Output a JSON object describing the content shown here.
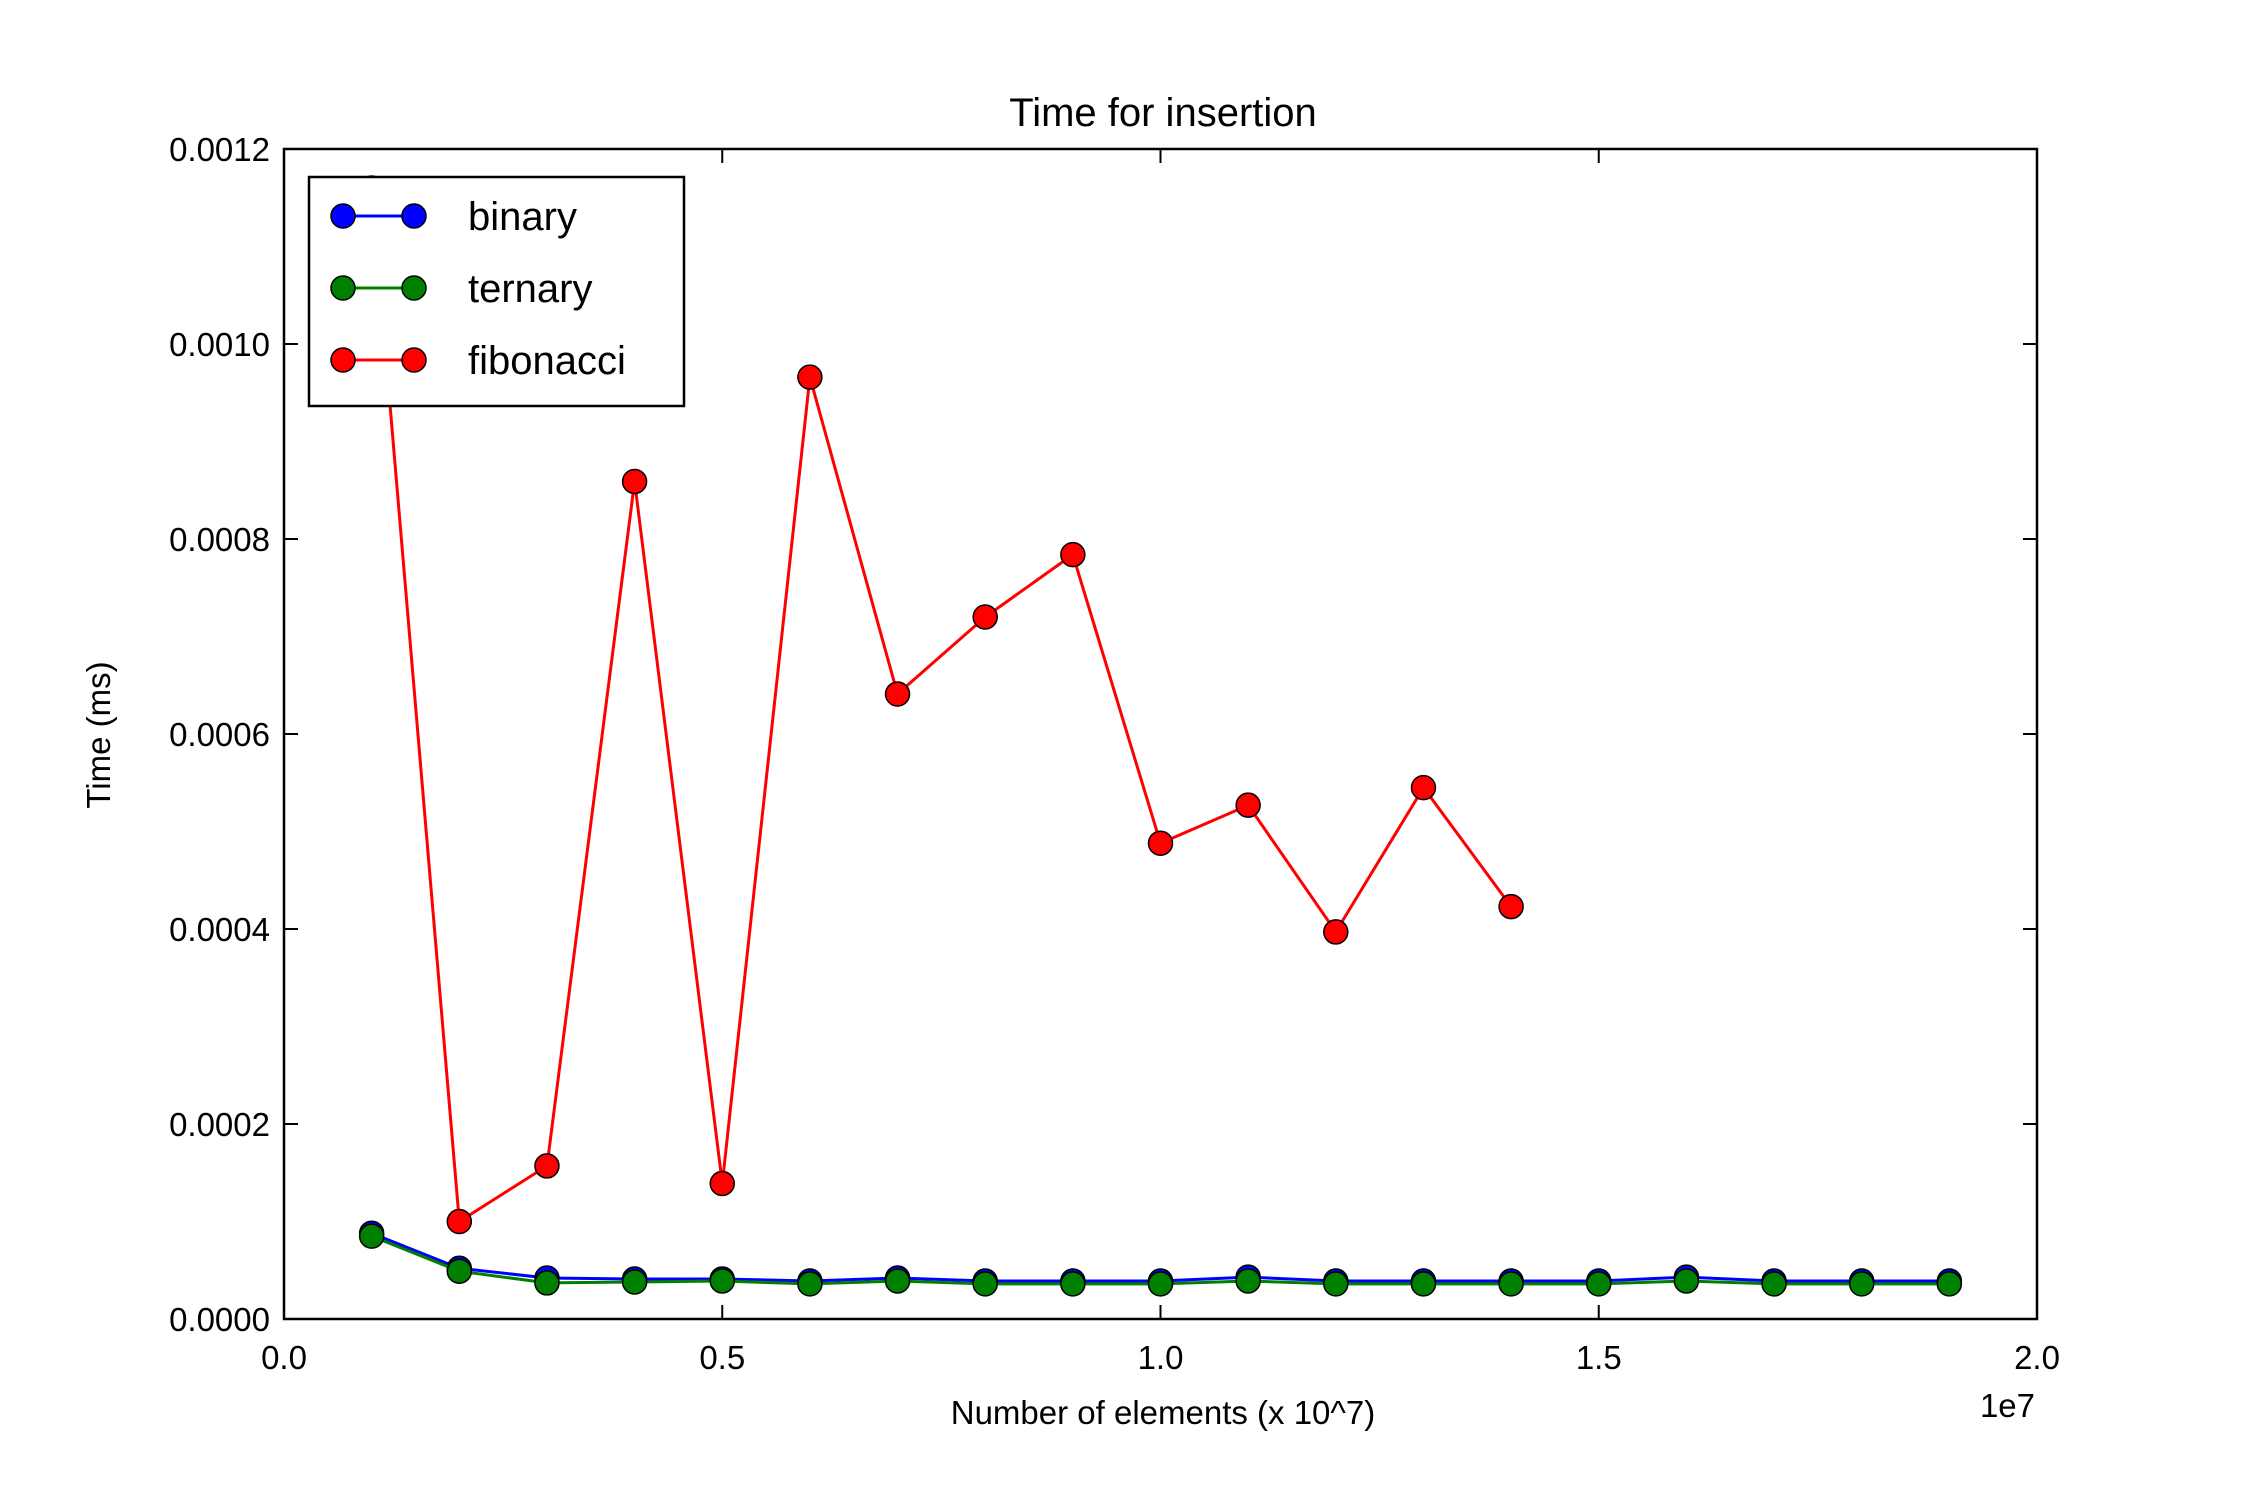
{
  "chart_data": {
    "type": "line",
    "title": "Time for insertion",
    "xlabel": "Number of elements (x 10^7)",
    "ylabel": "Time (ms)",
    "x_offset_text": "1e7",
    "xlim": [
      0,
      20000000
    ],
    "ylim": [
      0,
      0.0012
    ],
    "x_ticks": [
      0,
      5000000,
      10000000,
      15000000,
      20000000
    ],
    "x_tick_labels": [
      "0.0",
      "0.5",
      "1.0",
      "1.5",
      "2.0"
    ],
    "y_ticks": [
      0,
      0.0002,
      0.0004,
      0.0006,
      0.0008,
      0.001,
      0.0012
    ],
    "y_tick_labels": [
      "0.0000",
      "0.0002",
      "0.0004",
      "0.0006",
      "0.0008",
      "0.0010",
      "0.0012"
    ],
    "grid": false,
    "legend_position": "top-left",
    "series": [
      {
        "name": "binary",
        "color": "#0000ff",
        "x": [
          1000000,
          2000000,
          3000000,
          4000000,
          5000000,
          6000000,
          7000000,
          8000000,
          9000000,
          10000000,
          11000000,
          12000000,
          13000000,
          14000000,
          15000000,
          16000000,
          17000000,
          18000000,
          19000000
        ],
        "y": [
          8.8e-05,
          5.2e-05,
          4.2e-05,
          4.1e-05,
          4.1e-05,
          3.9e-05,
          4.2e-05,
          3.9e-05,
          3.9e-05,
          3.9e-05,
          4.3e-05,
          3.9e-05,
          3.9e-05,
          3.9e-05,
          3.9e-05,
          4.3e-05,
          3.9e-05,
          3.9e-05,
          3.9e-05
        ]
      },
      {
        "name": "ternary",
        "color": "#008000",
        "x": [
          1000000,
          2000000,
          3000000,
          4000000,
          5000000,
          6000000,
          7000000,
          8000000,
          9000000,
          10000000,
          11000000,
          12000000,
          13000000,
          14000000,
          15000000,
          16000000,
          17000000,
          18000000,
          19000000
        ],
        "y": [
          8.5e-05,
          4.9e-05,
          3.7e-05,
          3.8e-05,
          3.9e-05,
          3.6e-05,
          3.9e-05,
          3.6e-05,
          3.6e-05,
          3.6e-05,
          3.9e-05,
          3.6e-05,
          3.6e-05,
          3.6e-05,
          3.6e-05,
          3.9e-05,
          3.6e-05,
          3.6e-05,
          3.6e-05
        ]
      },
      {
        "name": "fibonacci",
        "color": "#ff0000",
        "x": [
          1000000,
          2000000,
          3000000,
          4000000,
          5000000,
          6000000,
          7000000,
          8000000,
          9000000,
          10000000,
          11000000,
          12000000,
          13000000,
          14000000
        ],
        "y": [
          0.00116,
          0.0001,
          0.000157,
          0.000859,
          0.000139,
          0.000966,
          0.000641,
          0.00072,
          0.000784,
          0.000488,
          0.000527,
          0.000397,
          0.000545,
          0.000423
        ]
      }
    ]
  }
}
